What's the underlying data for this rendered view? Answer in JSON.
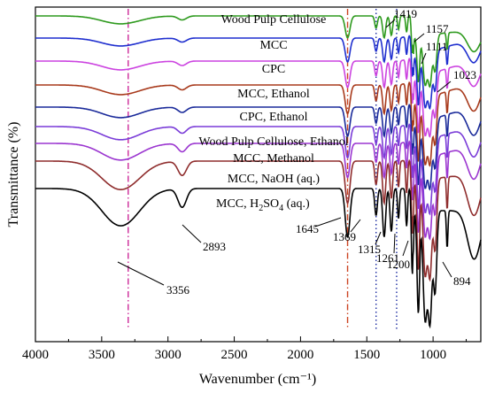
{
  "chart_data": {
    "type": "line",
    "xlabel": "Wavenumber (cm⁻¹)",
    "ylabel": "Transmittance (%)",
    "xlim": [
      4000,
      640
    ],
    "x_ticks": [
      4000,
      3500,
      3000,
      2500,
      2000,
      1500,
      1000
    ],
    "x_tick_labels": [
      "4000",
      "3500",
      "3000",
      "2500",
      "2000",
      "1500",
      "1000"
    ],
    "grid": false,
    "legend": "labels placed on each trace",
    "series": [
      {
        "name": "Wood Pulp Cellulose",
        "color": "#2e9a1e",
        "offset": 0
      },
      {
        "name": "MCC",
        "color": "#1f2fcf",
        "offset": 1
      },
      {
        "name": "CPC",
        "color": "#cc44e0",
        "offset": 2
      },
      {
        "name": "MCC, Ethanol",
        "color": "#a83a1c",
        "offset": 3
      },
      {
        "name": "CPC, Ethanol",
        "color": "#1a2a9a",
        "offset": 4
      },
      {
        "name": "Wood Pulp Cellulose, Ethanol",
        "color": "#7a3cd8",
        "offset": 5
      },
      {
        "name": "MCC, Methanol",
        "color": "#9b36d0",
        "offset": 6
      },
      {
        "name": "MCC, NaOH (aq.)",
        "color": "#8f2d2d",
        "offset": 7
      },
      {
        "name": "MCC, H2SO4 (aq.)",
        "color": "#000000",
        "offset": 8
      }
    ],
    "label_parts": {
      "h2so4_prefix": "MCC, H",
      "h2so4_sub": "2",
      "h2so4_suffix": "SO",
      "h2so4_sub2": "4",
      "h2so4_tail": " (aq.)"
    },
    "reference_lines": [
      {
        "x": 3300,
        "color": "#cc2a99",
        "style": "dash-dot"
      },
      {
        "x": 1645,
        "color": "#cc4422",
        "style": "dash-dot"
      },
      {
        "x": 1430,
        "color": "#1a2aa0",
        "style": "dotted"
      },
      {
        "x": 1275,
        "color": "#1a2aa0",
        "style": "dotted"
      }
    ],
    "annotations": [
      {
        "text": "3356",
        "x": 3356
      },
      {
        "text": "2893",
        "x": 2893
      },
      {
        "text": "1645",
        "x": 1645
      },
      {
        "text": "1369",
        "x": 1369
      },
      {
        "text": "1315",
        "x": 1315
      },
      {
        "text": "1261",
        "x": 1261
      },
      {
        "text": "1200",
        "x": 1200
      },
      {
        "text": "894",
        "x": 894
      },
      {
        "text": "1419",
        "x": 1419
      },
      {
        "text": "1157",
        "x": 1157
      },
      {
        "text": "1111",
        "x": 1111
      },
      {
        "text": "1023",
        "x": 1023
      }
    ]
  }
}
